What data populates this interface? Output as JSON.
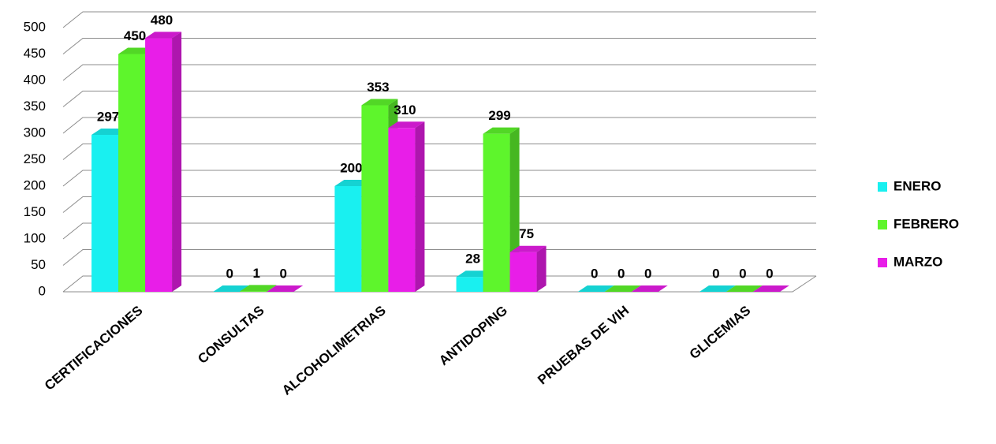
{
  "chart_data": {
    "type": "bar3d",
    "categories": [
      "CERTIFICACIONES",
      "CONSULTAS",
      "ALCOHOLIMETRIAS",
      "ANTIDOPING",
      "PRUEBAS DE VIH",
      "GLICEMIAS"
    ],
    "series": [
      {
        "name": "ENERO",
        "color": "#19f0f0",
        "values": [
          297,
          0,
          200,
          28,
          0,
          0
        ]
      },
      {
        "name": "FEBRERO",
        "color": "#5ef52c",
        "values": [
          450,
          1,
          353,
          299,
          0,
          0
        ]
      },
      {
        "name": "MARZO",
        "color": "#e81ee8",
        "values": [
          480,
          0,
          310,
          75,
          0,
          0
        ]
      }
    ],
    "ylim": [
      0,
      500
    ],
    "yticks": [
      0,
      50,
      100,
      150,
      200,
      250,
      300,
      350,
      400,
      450,
      500
    ],
    "grid": true,
    "legend": "right"
  }
}
